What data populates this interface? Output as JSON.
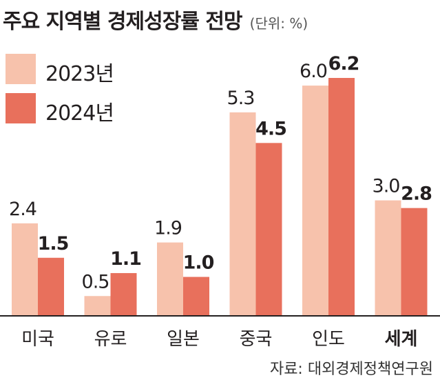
{
  "title": "주요 지역별 경제성장률 전망",
  "unit": "(단위: %)",
  "source": "자료: 대외경제정책연구원",
  "colors": {
    "series_2023": "#f7c2ac",
    "series_2024": "#e8705c",
    "axis": "#231f20"
  },
  "chart_data": {
    "type": "bar",
    "title": "주요 지역별 경제성장률 전망",
    "unit": "%",
    "categories": [
      "미국",
      "유로",
      "일본",
      "중국",
      "인도",
      "세계"
    ],
    "bold_categories": [
      "세계"
    ],
    "series": [
      {
        "name": "2023년",
        "values": [
          2.4,
          0.5,
          1.9,
          5.3,
          6.0,
          3.0
        ]
      },
      {
        "name": "2024년",
        "values": [
          1.5,
          1.1,
          1.0,
          4.5,
          6.2,
          2.8
        ]
      }
    ],
    "value_labels": [
      [
        "2.4",
        "0.5",
        "1.9",
        "5.3",
        "6.0",
        "3.0"
      ],
      [
        "1.5",
        "1.1",
        "1.0",
        "4.5",
        "6.2",
        "2.8"
      ]
    ],
    "ylim": [
      0,
      6.2
    ],
    "grid": false,
    "legend": "top-left"
  }
}
